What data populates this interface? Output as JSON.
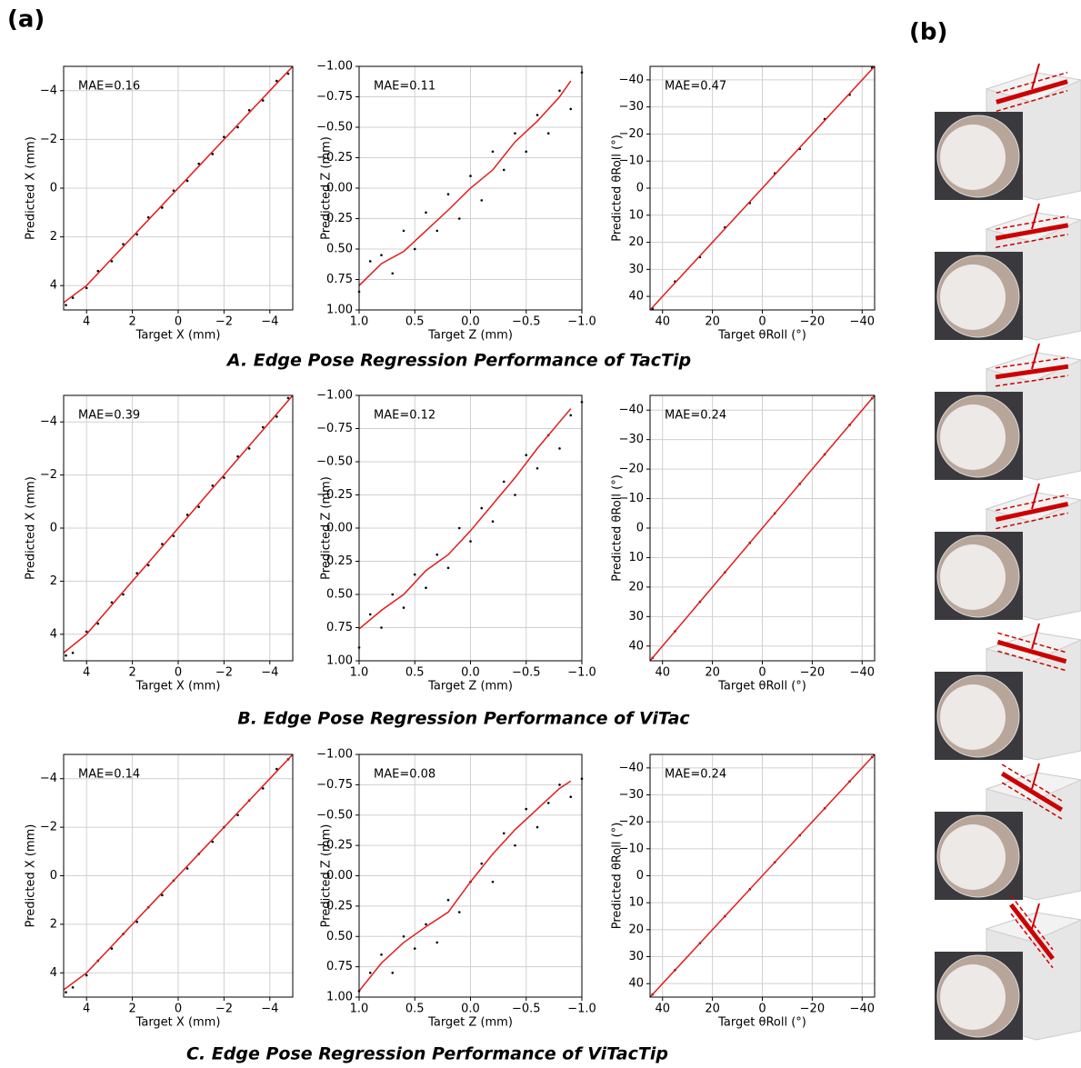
{
  "label_a": "(a)",
  "label_b": "(b)",
  "row_titles": [
    "A. Edge Pose Regression Performance of TacTip",
    "B. Edge Pose Regression Performance of ViTac",
    "C. Edge Pose Regression Performance of ViTacTip"
  ],
  "chart_data": [
    {
      "type": "scatter",
      "annotation": "MAE=0.16",
      "xlabel": "Target X (mm)",
      "ylabel": "Predicted X (mm)",
      "grid": true,
      "xlim": [
        5,
        -5
      ],
      "ylim": [
        5,
        -5
      ],
      "xticks": [
        {
          "value": 4,
          "label": "4"
        },
        {
          "value": 2,
          "label": "2"
        },
        0,
        {
          "value": -2,
          "label": "−2"
        },
        {
          "value": -4,
          "label": "−4"
        }
      ],
      "yticks": [
        {
          "value": -4,
          "label": "−4"
        },
        {
          "value": -2,
          "label": "−2"
        },
        0,
        2,
        4
      ],
      "series": [
        {
          "color": "#000000",
          "x": [
            -4.8,
            -4.3,
            -3.7,
            -3.1,
            -2.6,
            -2.0,
            -1.5,
            -0.9,
            -0.4,
            0.2,
            0.7,
            1.3,
            1.8,
            2.4,
            2.9,
            3.5,
            4.0,
            4.6,
            4.9
          ],
          "values": [
            -4.7,
            -4.4,
            -3.6,
            -3.2,
            -2.5,
            -2.1,
            -1.4,
            -1.0,
            -0.3,
            0.1,
            0.8,
            1.2,
            1.9,
            2.3,
            3.0,
            3.4,
            4.1,
            4.5,
            4.8
          ]
        },
        {
          "color": "#e31a1c",
          "line": true,
          "x": [
            -5,
            -4,
            -3,
            -2,
            -1,
            0,
            1,
            2,
            3,
            4,
            5
          ],
          "values": [
            -5,
            -4,
            -3,
            -2,
            -1,
            0,
            1,
            2,
            3,
            4,
            4.7
          ]
        }
      ]
    },
    {
      "type": "scatter",
      "annotation": "MAE=0.11",
      "xlabel": "Target Z (mm)",
      "ylabel": "Predicted Z (mm)",
      "grid": true,
      "xlim": [
        1,
        -1
      ],
      "ylim": [
        1,
        -1
      ],
      "xticks": [
        {
          "value": 1,
          "label": "1.0"
        },
        {
          "value": 0.5,
          "label": "0.5"
        },
        {
          "value": 0,
          "label": "0.0"
        },
        {
          "value": -0.5,
          "label": "−0.5"
        },
        {
          "value": -1,
          "label": "−1.0"
        }
      ],
      "yticks": [
        {
          "value": -1,
          "label": "−1.00"
        },
        {
          "value": -0.75,
          "label": "−0.75"
        },
        {
          "value": -0.5,
          "label": "−0.50"
        },
        {
          "value": -0.25,
          "label": "−0.25"
        },
        {
          "value": 0,
          "label": "0.00"
        },
        0.25,
        {
          "value": 0.5,
          "label": "0.50"
        },
        0.75,
        {
          "value": 1,
          "label": "1.00"
        }
      ],
      "series": [
        {
          "color": "#000000",
          "x": [
            1.0,
            0.9,
            0.8,
            0.7,
            0.6,
            0.5,
            0.4,
            0.3,
            0.2,
            0.1,
            0,
            -0.1,
            -0.2,
            -0.3,
            -0.4,
            -0.5,
            -0.6,
            -0.7,
            -0.8,
            -0.9,
            -1.0
          ],
          "values": [
            0.85,
            0.6,
            0.55,
            0.7,
            0.35,
            0.5,
            0.2,
            0.35,
            0.05,
            0.25,
            -0.1,
            0.1,
            -0.3,
            -0.15,
            -0.45,
            -0.3,
            -0.6,
            -0.45,
            -0.8,
            -0.65,
            -0.95
          ]
        },
        {
          "color": "#e31a1c",
          "line": true,
          "x": [
            1.0,
            0.8,
            0.6,
            0.4,
            0.2,
            0,
            -0.2,
            -0.4,
            -0.6,
            -0.8,
            -0.9
          ],
          "values": [
            0.8,
            0.62,
            0.52,
            0.35,
            0.18,
            0,
            -0.15,
            -0.38,
            -0.55,
            -0.75,
            -0.88
          ]
        }
      ]
    },
    {
      "type": "scatter",
      "annotation": "MAE=0.47",
      "xlabel": "Target θRoll (°)",
      "ylabel": "Predicted θRoll (°)",
      "grid": true,
      "xlim": [
        45,
        -45
      ],
      "ylim": [
        45,
        -45
      ],
      "xticks": [
        40,
        20,
        0,
        {
          "value": -20,
          "label": "−20"
        },
        {
          "value": -40,
          "label": "−40"
        }
      ],
      "yticks": [
        {
          "value": -40,
          "label": "−40"
        },
        {
          "value": -30,
          "label": "−30"
        },
        {
          "value": -20,
          "label": "−20"
        },
        {
          "value": -10,
          "label": "−10"
        },
        0,
        10,
        20,
        30,
        40
      ],
      "series": [
        {
          "color": "#000000",
          "x": [
            44,
            35,
            25,
            15,
            5,
            -5,
            -15,
            -25,
            -35,
            -44
          ],
          "values": [
            44.5,
            34.5,
            25.5,
            14.5,
            5.5,
            -5.5,
            -14.5,
            -25.5,
            -34.5,
            -44.5
          ]
        },
        {
          "color": "#e31a1c",
          "line": true,
          "x": [
            45,
            -45
          ],
          "values": [
            45,
            -45
          ]
        }
      ]
    },
    {
      "type": "scatter",
      "annotation": "MAE=0.39",
      "xlabel": "Target X (mm)",
      "ylabel": "Predicted X (mm)",
      "grid": true,
      "xlim": [
        5,
        -5
      ],
      "ylim": [
        5,
        -5
      ],
      "xticks": [
        {
          "value": 4,
          "label": "4"
        },
        {
          "value": 2,
          "label": "2"
        },
        0,
        {
          "value": -2,
          "label": "−2"
        },
        {
          "value": -4,
          "label": "−4"
        }
      ],
      "yticks": [
        {
          "value": -4,
          "label": "−4"
        },
        {
          "value": -2,
          "label": "−2"
        },
        0,
        2,
        4
      ],
      "series": [
        {
          "color": "#000000",
          "x": [
            -4.8,
            -4.3,
            -3.7,
            -3.1,
            -2.6,
            -2.0,
            -1.5,
            -0.9,
            -0.4,
            0.2,
            0.7,
            1.3,
            1.8,
            2.4,
            2.9,
            3.5,
            4.0,
            4.6,
            4.9
          ],
          "values": [
            -4.9,
            -4.2,
            -3.8,
            -3.0,
            -2.7,
            -1.9,
            -1.6,
            -0.8,
            -0.5,
            0.3,
            0.6,
            1.4,
            1.7,
            2.5,
            2.8,
            3.6,
            3.9,
            4.7,
            4.8
          ]
        },
        {
          "color": "#e31a1c",
          "line": true,
          "x": [
            -5,
            -4,
            -3,
            -2,
            -1,
            0,
            1,
            2,
            3,
            4,
            5
          ],
          "values": [
            -5,
            -4,
            -3,
            -2,
            -1,
            0,
            1,
            2,
            3,
            4,
            4.7
          ]
        }
      ]
    },
    {
      "type": "scatter",
      "annotation": "MAE=0.12",
      "xlabel": "Target Z (mm)",
      "ylabel": "Predicted Z (mm)",
      "grid": true,
      "xlim": [
        1,
        -1
      ],
      "ylim": [
        1,
        -1
      ],
      "xticks": [
        {
          "value": 1,
          "label": "1.0"
        },
        {
          "value": 0.5,
          "label": "0.5"
        },
        {
          "value": 0,
          "label": "0.0"
        },
        {
          "value": -0.5,
          "label": "−0.5"
        },
        {
          "value": -1,
          "label": "−1.0"
        }
      ],
      "yticks": [
        {
          "value": -1,
          "label": "−1.00"
        },
        {
          "value": -0.75,
          "label": "−0.75"
        },
        {
          "value": -0.5,
          "label": "−0.50"
        },
        {
          "value": -0.25,
          "label": "−0.25"
        },
        {
          "value": 0,
          "label": "0.00"
        },
        0.25,
        {
          "value": 0.5,
          "label": "0.50"
        },
        0.75,
        {
          "value": 1,
          "label": "1.00"
        }
      ],
      "series": [
        {
          "color": "#000000",
          "x": [
            1.0,
            0.9,
            0.8,
            0.7,
            0.6,
            0.5,
            0.4,
            0.3,
            0.2,
            0.1,
            0,
            -0.1,
            -0.2,
            -0.3,
            -0.4,
            -0.5,
            -0.6,
            -0.7,
            -0.8,
            -0.9,
            -1.0
          ],
          "values": [
            0.9,
            0.65,
            0.75,
            0.5,
            0.6,
            0.35,
            0.45,
            0.2,
            0.3,
            0.0,
            0.1,
            -0.15,
            -0.05,
            -0.35,
            -0.25,
            -0.55,
            -0.45,
            -0.7,
            -0.6,
            -0.85,
            -0.95
          ]
        },
        {
          "color": "#e31a1c",
          "line": true,
          "x": [
            1.0,
            0.8,
            0.6,
            0.4,
            0.2,
            0,
            -0.2,
            -0.4,
            -0.6,
            -0.8,
            -0.9
          ],
          "values": [
            0.76,
            0.62,
            0.5,
            0.32,
            0.2,
            0.02,
            -0.18,
            -0.38,
            -0.6,
            -0.8,
            -0.9
          ]
        }
      ]
    },
    {
      "type": "scatter",
      "annotation": "MAE=0.24",
      "xlabel": "Target θRoll (°)",
      "ylabel": "Predicted θRoll (°)",
      "grid": true,
      "xlim": [
        45,
        -45
      ],
      "ylim": [
        45,
        -45
      ],
      "xticks": [
        40,
        20,
        0,
        {
          "value": -20,
          "label": "−20"
        },
        {
          "value": -40,
          "label": "−40"
        }
      ],
      "yticks": [
        {
          "value": -40,
          "label": "−40"
        },
        {
          "value": -30,
          "label": "−30"
        },
        {
          "value": -20,
          "label": "−20"
        },
        {
          "value": -10,
          "label": "−10"
        },
        0,
        10,
        20,
        30,
        40
      ],
      "series": [
        {
          "color": "#000000",
          "x": [
            44,
            35,
            25,
            15,
            5,
            -5,
            -15,
            -25,
            -35,
            -44
          ],
          "values": [
            44,
            35,
            25,
            15,
            5,
            -5,
            -15,
            -25,
            -35,
            -44
          ]
        },
        {
          "color": "#e31a1c",
          "line": true,
          "x": [
            45,
            -45
          ],
          "values": [
            45,
            -45
          ]
        }
      ]
    },
    {
      "type": "scatter",
      "annotation": "MAE=0.14",
      "xlabel": "Target X (mm)",
      "ylabel": "Predicted X (mm)",
      "grid": true,
      "xlim": [
        5,
        -5
      ],
      "ylim": [
        5,
        -5
      ],
      "xticks": [
        {
          "value": 4,
          "label": "4"
        },
        {
          "value": 2,
          "label": "2"
        },
        0,
        {
          "value": -2,
          "label": "−2"
        },
        {
          "value": -4,
          "label": "−4"
        }
      ],
      "yticks": [
        {
          "value": -4,
          "label": "−4"
        },
        {
          "value": -2,
          "label": "−2"
        },
        0,
        2,
        4
      ],
      "series": [
        {
          "color": "#000000",
          "x": [
            -4.8,
            -4.3,
            -3.7,
            -3.1,
            -2.6,
            -2.0,
            -1.5,
            -0.9,
            -0.4,
            0.2,
            0.7,
            1.3,
            1.8,
            2.4,
            2.9,
            3.5,
            4.0,
            4.6,
            4.9
          ],
          "values": [
            -4.8,
            -4.4,
            -3.6,
            -3.1,
            -2.5,
            -2.0,
            -1.4,
            -0.9,
            -0.3,
            0.2,
            0.8,
            1.3,
            1.9,
            2.4,
            3.0,
            3.5,
            4.1,
            4.6,
            4.8
          ]
        },
        {
          "color": "#e31a1c",
          "line": true,
          "x": [
            -5,
            -4,
            -3,
            -2,
            -1,
            0,
            1,
            2,
            3,
            4,
            5
          ],
          "values": [
            -5,
            -4,
            -3,
            -2,
            -1,
            0,
            1,
            2,
            3,
            4,
            4.7
          ]
        }
      ]
    },
    {
      "type": "scatter",
      "annotation": "MAE=0.08",
      "xlabel": "Target Z (mm)",
      "ylabel": "Predicted Z (mm)",
      "grid": true,
      "xlim": [
        1,
        -1
      ],
      "ylim": [
        1,
        -1
      ],
      "xticks": [
        {
          "value": 1,
          "label": "1.0"
        },
        {
          "value": 0.5,
          "label": "0.5"
        },
        {
          "value": 0,
          "label": "0.0"
        },
        {
          "value": -0.5,
          "label": "−0.5"
        },
        {
          "value": -1,
          "label": "−1.0"
        }
      ],
      "yticks": [
        {
          "value": -1,
          "label": "−1.00"
        },
        {
          "value": -0.75,
          "label": "−0.75"
        },
        {
          "value": -0.5,
          "label": "−0.50"
        },
        {
          "value": -0.25,
          "label": "−0.25"
        },
        {
          "value": 0,
          "label": "0.00"
        },
        0.25,
        {
          "value": 0.5,
          "label": "0.50"
        },
        0.75,
        {
          "value": 1,
          "label": "1.00"
        }
      ],
      "series": [
        {
          "color": "#000000",
          "x": [
            1.0,
            0.9,
            0.8,
            0.7,
            0.6,
            0.5,
            0.4,
            0.3,
            0.2,
            0.1,
            0,
            -0.1,
            -0.2,
            -0.3,
            -0.4,
            -0.5,
            -0.6,
            -0.7,
            -0.8,
            -0.9,
            -1.0
          ],
          "values": [
            0.95,
            0.8,
            0.65,
            0.8,
            0.5,
            0.6,
            0.4,
            0.55,
            0.2,
            0.3,
            0.05,
            -0.1,
            0.05,
            -0.35,
            -0.25,
            -0.55,
            -0.4,
            -0.6,
            -0.75,
            -0.65,
            -0.8
          ]
        },
        {
          "color": "#e31a1c",
          "line": true,
          "x": [
            1.0,
            0.8,
            0.6,
            0.4,
            0.2,
            0,
            -0.2,
            -0.4,
            -0.6,
            -0.8,
            -0.9
          ],
          "values": [
            0.95,
            0.72,
            0.55,
            0.42,
            0.3,
            0.05,
            -0.18,
            -0.38,
            -0.55,
            -0.72,
            -0.78
          ]
        }
      ]
    },
    {
      "type": "scatter",
      "annotation": "MAE=0.24",
      "xlabel": "Target θRoll (°)",
      "ylabel": "Predicted θRoll (°)",
      "grid": true,
      "xlim": [
        45,
        -45
      ],
      "ylim": [
        45,
        -45
      ],
      "xticks": [
        40,
        20,
        0,
        {
          "value": -20,
          "label": "−20"
        },
        {
          "value": -40,
          "label": "−40"
        }
      ],
      "yticks": [
        {
          "value": -40,
          "label": "−40"
        },
        {
          "value": -30,
          "label": "−30"
        },
        {
          "value": -20,
          "label": "−20"
        },
        {
          "value": -10,
          "label": "−10"
        },
        0,
        10,
        20,
        30,
        40
      ],
      "series": [
        {
          "color": "#000000",
          "x": [
            44,
            35,
            25,
            15,
            5,
            -5,
            -15,
            -25,
            -35,
            -44
          ],
          "values": [
            44,
            35,
            25,
            15,
            5,
            -5,
            -15,
            -25,
            -35,
            -44
          ]
        },
        {
          "color": "#e31a1c",
          "line": true,
          "x": [
            45,
            -45
          ],
          "values": [
            45,
            -45
          ]
        }
      ]
    }
  ]
}
